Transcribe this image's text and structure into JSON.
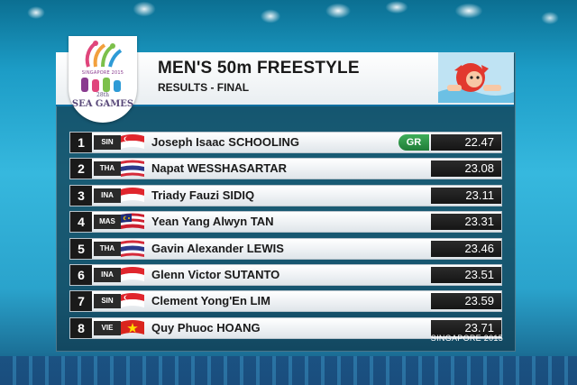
{
  "event": {
    "title": "MEN'S 50m FREESTYLE",
    "subtitle": "RESULTS - FINAL"
  },
  "logo": {
    "top_text": "SINGAPORE 2015",
    "year_text": "28th",
    "name_text": "SEA GAMES"
  },
  "footer": {
    "location": "SINGAPORE 2015"
  },
  "results": [
    {
      "rank": "1",
      "nat": "SIN",
      "flag": "singapore-flag",
      "name": "Joseph Isaac SCHOOLING",
      "record": "GR",
      "time": "22.47"
    },
    {
      "rank": "2",
      "nat": "THA",
      "flag": "thailand-flag",
      "name": "Napat WESSHASARTAR",
      "record": "",
      "time": "23.08"
    },
    {
      "rank": "3",
      "nat": "INA",
      "flag": "indonesia-flag",
      "name": "Triady Fauzi SIDIQ",
      "record": "",
      "time": "23.11"
    },
    {
      "rank": "4",
      "nat": "MAS",
      "flag": "malaysia-flag",
      "name": "Yean Yang Alwyn TAN",
      "record": "",
      "time": "23.31"
    },
    {
      "rank": "5",
      "nat": "THA",
      "flag": "thailand-flag",
      "name": "Gavin Alexander LEWIS",
      "record": "",
      "time": "23.46"
    },
    {
      "rank": "6",
      "nat": "INA",
      "flag": "indonesia-flag",
      "name": "Glenn Victor SUTANTO",
      "record": "",
      "time": "23.51"
    },
    {
      "rank": "7",
      "nat": "SIN",
      "flag": "singapore-flag",
      "name": "Clement Yong'En LIM",
      "record": "",
      "time": "23.59"
    },
    {
      "rank": "8",
      "nat": "VIE",
      "flag": "vietnam-flag",
      "name": "Quy Phuoc HOANG",
      "record": "",
      "time": "23.71"
    }
  ]
}
